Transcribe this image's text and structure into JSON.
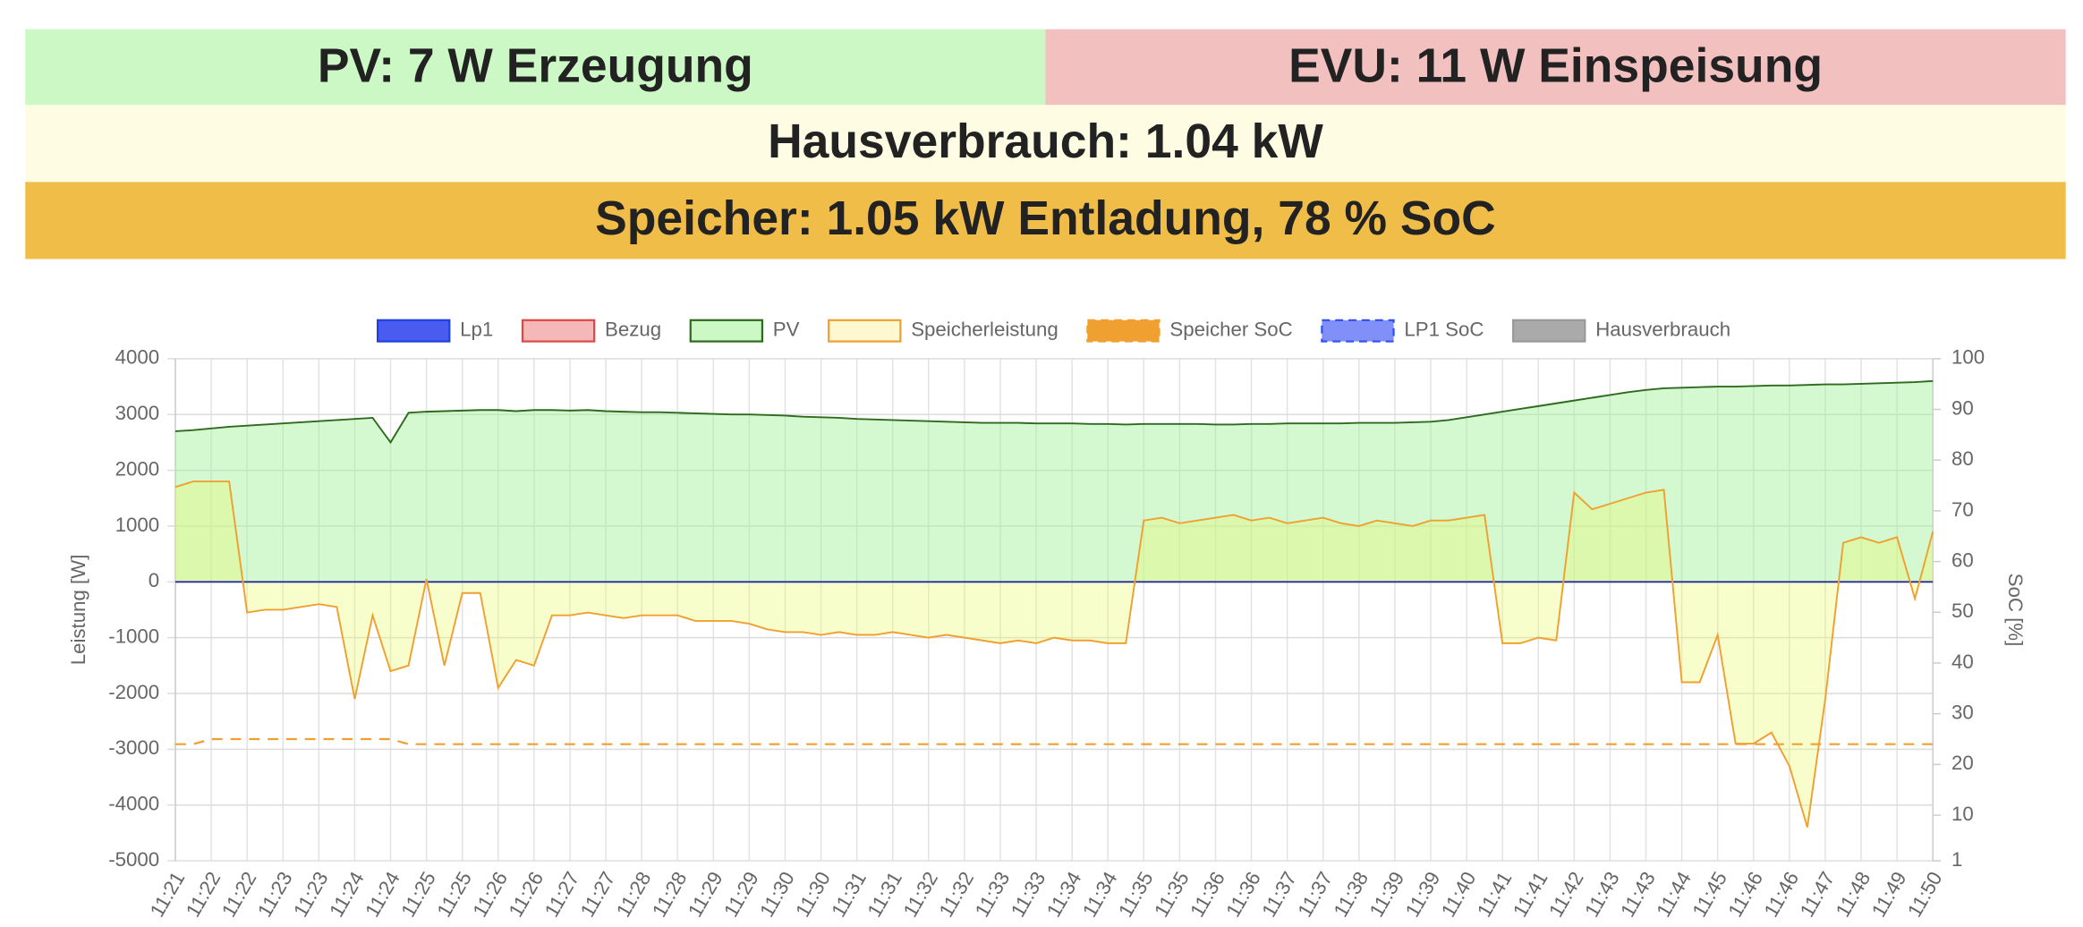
{
  "header": {
    "pv": "PV: 7 W Erzeugung",
    "evu": "EVU: 11 W Einspeisung",
    "hausverbrauch": "Hausverbrauch: 1.04 kW",
    "speicher": "Speicher: 1.05 kW Entladung, 78 % SoC"
  },
  "chart_data": {
    "type": "line",
    "categories": [
      "11:21",
      null,
      "11:22",
      null,
      "11:22",
      null,
      "11:23",
      null,
      "11:23",
      null,
      "11:24",
      null,
      "11:24",
      null,
      "11:25",
      null,
      "11:25",
      null,
      "11:26",
      null,
      "11:26",
      null,
      "11:27",
      null,
      "11:27",
      null,
      "11:28",
      null,
      "11:28",
      null,
      "11:29",
      null,
      "11:29",
      null,
      "11:30",
      null,
      "11:30",
      null,
      "11:31",
      null,
      "11:31",
      null,
      "11:32",
      null,
      "11:32",
      null,
      "11:33",
      null,
      "11:33",
      null,
      "11:34",
      null,
      "11:34",
      null,
      "11:35",
      null,
      "11:35",
      null,
      "11:36",
      null,
      "11:36",
      null,
      "11:37",
      null,
      "11:37",
      null,
      "11:38",
      null,
      "11:39",
      null,
      "11:39",
      null,
      "11:40",
      null,
      "11:41",
      null,
      "11:41",
      null,
      "11:42",
      null,
      "11:43",
      null,
      "11:43",
      null,
      "11:44",
      null,
      "11:45",
      null,
      "11:46",
      null,
      "11:46",
      null,
      "11:47",
      null,
      "11:48",
      null,
      "11:49",
      null,
      "11:50"
    ],
    "series": [
      {
        "name": "Lp1",
        "color": "#2a2a9a",
        "fill_color": "#4a5cf0",
        "legend_stroke": "#2040e0",
        "values": [
          0,
          0,
          0,
          0,
          0,
          0,
          0,
          0,
          0,
          0,
          0,
          0,
          0,
          0,
          0,
          0,
          0,
          0,
          0,
          0,
          0,
          0,
          0,
          0,
          0,
          0,
          0,
          0,
          0,
          0,
          0,
          0,
          0,
          0,
          0,
          0,
          0,
          0,
          0,
          0,
          0,
          0,
          0,
          0,
          0,
          0,
          0,
          0,
          0,
          0,
          0,
          0,
          0,
          0,
          0,
          0,
          0,
          0,
          0,
          0,
          0,
          0,
          0,
          0,
          0,
          0,
          0,
          0,
          0,
          0,
          0,
          0,
          0,
          0,
          0,
          0,
          0,
          0,
          0,
          0,
          0,
          0,
          0,
          0,
          0,
          0,
          0,
          0,
          0,
          0,
          0,
          0,
          0,
          0,
          0,
          0,
          0,
          0,
          0
        ]
      },
      {
        "name": "Bezug",
        "color": "#e04848",
        "fill_color": "#f4b8b8",
        "legend_stroke": "#e04848"
      },
      {
        "name": "PV",
        "color": "#2e6b1e",
        "fill_color": "#ccf8c6",
        "legend_stroke": "#2e6b1e",
        "fill": "rgba(160,240,150,0.45)",
        "values": [
          2700,
          2720,
          2750,
          2780,
          2800,
          2820,
          2840,
          2860,
          2880,
          2900,
          2920,
          2940,
          2500,
          3030,
          3050,
          3060,
          3070,
          3080,
          3080,
          3060,
          3080,
          3080,
          3070,
          3080,
          3060,
          3050,
          3040,
          3040,
          3030,
          3020,
          3010,
          3000,
          3000,
          2990,
          2980,
          2960,
          2950,
          2940,
          2920,
          2910,
          2900,
          2890,
          2880,
          2870,
          2860,
          2850,
          2850,
          2850,
          2840,
          2840,
          2840,
          2830,
          2830,
          2820,
          2830,
          2830,
          2830,
          2830,
          2820,
          2820,
          2830,
          2830,
          2840,
          2840,
          2840,
          2840,
          2850,
          2850,
          2850,
          2860,
          2870,
          2900,
          2950,
          3000,
          3050,
          3100,
          3150,
          3200,
          3250,
          3300,
          3350,
          3400,
          3440,
          3470,
          3480,
          3490,
          3500,
          3500,
          3510,
          3520,
          3520,
          3530,
          3540,
          3540,
          3550,
          3560,
          3570,
          3580,
          3600
        ]
      },
      {
        "name": "Speicherleistung",
        "color": "#f0a030",
        "fill_color": "#fdf8d0",
        "legend_stroke": "#f0a030",
        "fill": "rgba(235,250,110,0.35)",
        "values": [
          1700,
          1800,
          1800,
          1800,
          -550,
          -500,
          -500,
          -450,
          -400,
          -450,
          -2100,
          -600,
          -1600,
          -1500,
          50,
          -1500,
          -200,
          -200,
          -1900,
          -1400,
          -1500,
          -600,
          -600,
          -550,
          -600,
          -650,
          -600,
          -600,
          -600,
          -700,
          -700,
          -700,
          -750,
          -850,
          -900,
          -900,
          -950,
          -900,
          -950,
          -950,
          -900,
          -950,
          -1000,
          -950,
          -1000,
          -1050,
          -1100,
          -1050,
          -1100,
          -1000,
          -1050,
          -1050,
          -1100,
          -1100,
          1100,
          1150,
          1050,
          1100,
          1150,
          1200,
          1100,
          1150,
          1050,
          1100,
          1150,
          1050,
          1000,
          1100,
          1050,
          1000,
          1100,
          1100,
          1150,
          1200,
          -1100,
          -1100,
          -1000,
          -1050,
          1600,
          1300,
          1400,
          1500,
          1600,
          1650,
          -1800,
          -1800,
          -950,
          -2900,
          -2900,
          -2700,
          -3300,
          -4400,
          -2100,
          700,
          800,
          700,
          800,
          -300,
          900
        ]
      },
      {
        "name": "Speicher SoC",
        "color": "#f0a030",
        "fill_color": "#f0a030",
        "legend_stroke": "#f0a030",
        "dash": true,
        "axis": "y2",
        "values": [
          24,
          24,
          25,
          25,
          25,
          25,
          25,
          25,
          25,
          25,
          25,
          25,
          25,
          24,
          24,
          24,
          24,
          24,
          24,
          24,
          24,
          24,
          24,
          24,
          24,
          24,
          24,
          24,
          24,
          24,
          24,
          24,
          24,
          24,
          24,
          24,
          24,
          24,
          24,
          24,
          24,
          24,
          24,
          24,
          24,
          24,
          24,
          24,
          24,
          24,
          24,
          24,
          24,
          24,
          24,
          24,
          24,
          24,
          24,
          24,
          24,
          24,
          24,
          24,
          24,
          24,
          24,
          24,
          24,
          24,
          24,
          24,
          24,
          24,
          24,
          24,
          24,
          24,
          24,
          24,
          24,
          24,
          24,
          24,
          24,
          24,
          24,
          24,
          24,
          24,
          24,
          24,
          24,
          24,
          24,
          24,
          24,
          24,
          24
        ]
      },
      {
        "name": "LP1 SoC",
        "color": "#3050f0",
        "fill_color": "#8090f8",
        "legend_stroke": "#3050f0",
        "dash": true,
        "axis": "y2"
      },
      {
        "name": "Hausverbrauch",
        "color": "#999999",
        "fill_color": "#aaaaaa",
        "legend_stroke": "#999999"
      }
    ],
    "y_label": "Leistung [W]",
    "y2_label": "SoC [%]",
    "ylim": [
      -5000,
      4000
    ],
    "yticks": [
      -5000,
      -4000,
      -3000,
      -2000,
      -1000,
      0,
      1000,
      2000,
      3000,
      4000
    ],
    "y2lim": [
      1,
      100
    ],
    "y2ticks": [
      1,
      10,
      20,
      30,
      40,
      50,
      60,
      70,
      80,
      90,
      100
    ],
    "grid": true,
    "legend": "top"
  }
}
